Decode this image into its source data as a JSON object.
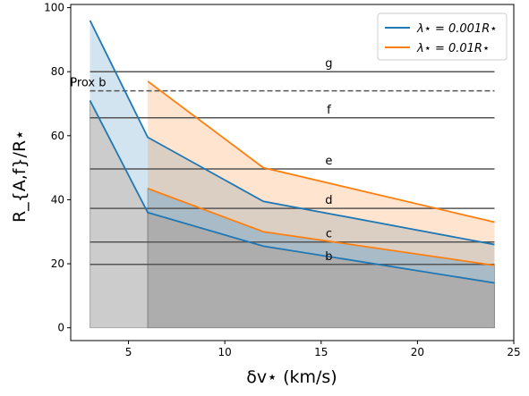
{
  "chart_data": {
    "type": "line",
    "xlabel": "δv⋆ (km/s)",
    "ylabel": "R_{A,f}/R⋆",
    "xlim": [
      2.0,
      25.0
    ],
    "ylim": [
      -4.0,
      101.0
    ],
    "xticks": [
      5,
      10,
      15,
      20,
      25
    ],
    "yticks": [
      0,
      20,
      40,
      60,
      80,
      100
    ],
    "grid": false,
    "legend_position": "top-right",
    "series": [
      {
        "name": "λ⋆ = 0.001R⋆",
        "color": "#1f77b4",
        "upper": {
          "x": [
            3,
            6,
            12,
            24
          ],
          "y": [
            96,
            59.5,
            39.5,
            26
          ]
        },
        "lower": {
          "x": [
            3,
            6,
            12,
            24
          ],
          "y": [
            71,
            36,
            25.5,
            14
          ]
        }
      },
      {
        "name": "λ⋆ = 0.01R⋆",
        "color": "#ff7f0e",
        "upper": {
          "x": [
            6,
            12,
            24
          ],
          "y": [
            77,
            50,
            33
          ]
        },
        "lower": {
          "x": [
            6,
            12,
            24
          ],
          "y": [
            43.5,
            30,
            19.5
          ]
        }
      }
    ],
    "gray_regions": [
      {
        "x": [
          3,
          6
        ],
        "y_top": [
          71,
          36
        ]
      },
      {
        "x": [
          6,
          12,
          24
        ],
        "y_top": [
          36,
          25.5,
          14
        ]
      },
      {
        "x": [
          6,
          12,
          24
        ],
        "y_top": [
          43.5,
          30,
          19.5
        ]
      }
    ],
    "reference_lines": [
      {
        "label": "b",
        "y": 19.8,
        "dashed": false,
        "label_x": 15.4
      },
      {
        "label": "c",
        "y": 26.8,
        "dashed": false,
        "label_x": 15.4
      },
      {
        "label": "d",
        "y": 37.3,
        "dashed": false,
        "label_x": 15.4
      },
      {
        "label": "e",
        "y": 49.6,
        "dashed": false,
        "label_x": 15.4
      },
      {
        "label": "f",
        "y": 65.6,
        "dashed": false,
        "label_x": 15.4
      },
      {
        "label": "g",
        "y": 80.0,
        "dashed": false,
        "label_x": 15.4
      },
      {
        "label": "Prox b",
        "y": 74.0,
        "dashed": true,
        "label_x": 2.9
      }
    ]
  }
}
